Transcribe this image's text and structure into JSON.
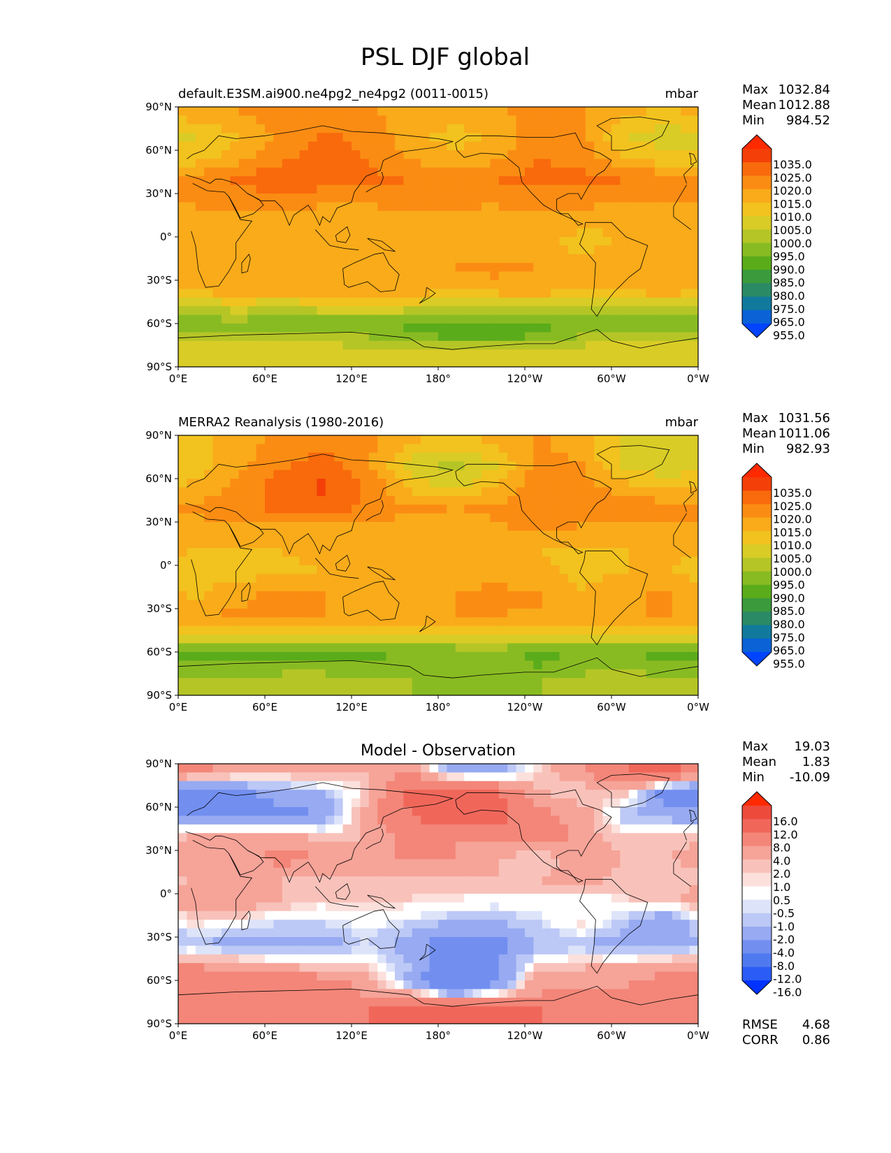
{
  "figure": {
    "title": "PSL DJF global"
  },
  "axis_ticks": {
    "lat": [
      "90°N",
      "60°N",
      "30°N",
      "0°",
      "30°S",
      "60°S",
      "90°S"
    ],
    "lon": [
      "0°E",
      "60°E",
      "120°E",
      "180°",
      "120°W",
      "60°W",
      "0°W"
    ]
  },
  "panels": [
    {
      "title": "default.E3SM.ai900.ne4pg2_ne4pg2 (0011-0015)",
      "units": "mbar",
      "stats": {
        "max_label": "Max",
        "max": "1032.84",
        "mean_label": "Mean",
        "mean": "1012.88",
        "min_label": "Min",
        "min": "984.52"
      },
      "colorbar_labels": [
        "1035.0",
        "1025.0",
        "1020.0",
        "1015.0",
        "1010.0",
        "1005.0",
        "1000.0",
        "995.0",
        "990.0",
        "985.0",
        "980.0",
        "975.0",
        "965.0",
        "955.0"
      ]
    },
    {
      "title": "MERRA2 Reanalysis (1980-2016)",
      "units": "mbar",
      "stats": {
        "max_label": "Max",
        "max": "1031.56",
        "mean_label": "Mean",
        "mean": "1011.06",
        "min_label": "Min",
        "min": "982.93"
      },
      "colorbar_labels": [
        "1035.0",
        "1025.0",
        "1020.0",
        "1015.0",
        "1010.0",
        "1005.0",
        "1000.0",
        "995.0",
        "990.0",
        "985.0",
        "980.0",
        "975.0",
        "965.0",
        "955.0"
      ]
    },
    {
      "title": "Model - Observation",
      "units": "",
      "stats": {
        "max_label": "Max",
        "max": "19.03",
        "mean_label": "Mean",
        "mean": "1.83",
        "min_label": "Min",
        "min": "-10.09"
      },
      "colorbar_labels": [
        "16.0",
        "12.0",
        "8.0",
        "4.0",
        "2.0",
        "1.0",
        "0.5",
        "-0.5",
        "-1.0",
        "-2.0",
        "-4.0",
        "-8.0",
        "-12.0",
        "-16.0"
      ],
      "metrics": {
        "rmse_label": "RMSE",
        "rmse": "4.68",
        "corr_label": "CORR",
        "corr": "0.86"
      }
    }
  ],
  "colors": {
    "abs": [
      "#0044ff",
      "#0a62d6",
      "#117a9c",
      "#2a8a66",
      "#3a9a3c",
      "#5aac1a",
      "#88bb22",
      "#b5c526",
      "#d9cc26",
      "#f2c21e",
      "#f9ab1a",
      "#fb8c13",
      "#f86a0c",
      "#f43f08",
      "#ff2a00"
    ],
    "diff": [
      "#0033ff",
      "#2b5cf5",
      "#4f7aef",
      "#728ff0",
      "#97aaf2",
      "#bcc8f6",
      "#dde4fa",
      "#ffffff",
      "#fbe0dc",
      "#f8c2ba",
      "#f6a398",
      "#f38678",
      "#f0675a",
      "#ed4a3c",
      "#ff2a00"
    ]
  },
  "chart_data": [
    {
      "type": "heatmap",
      "title": "default.E3SM.ai900.ne4pg2_ne4pg2 (0011-0015)",
      "units": "mbar",
      "x_range": [
        0,
        360
      ],
      "y_range": [
        -90,
        90
      ],
      "levels": [
        955,
        965,
        975,
        980,
        985,
        990,
        995,
        1000,
        1005,
        1010,
        1015,
        1020,
        1025,
        1035
      ],
      "extend": "both",
      "max": 1032.84,
      "mean": 1012.88,
      "min": 984.52,
      "lat": [
        85,
        70,
        55,
        40,
        25,
        10,
        -5,
        -20,
        -35,
        -50,
        -60,
        -70,
        -80
      ],
      "lon": [
        10,
        40,
        70,
        100,
        130,
        160,
        190,
        220,
        250,
        280,
        310,
        340
      ],
      "grid": [
        [
          1013,
          1015,
          1017,
          1018,
          1016,
          1013,
          1012,
          1014,
          1017,
          1015,
          1011,
          1009
        ],
        [
          1004,
          1010,
          1016,
          1021,
          1019,
          1012,
          1008,
          1011,
          1018,
          1016,
          1005,
          1002
        ],
        [
          1007,
          1012,
          1018,
          1022,
          1020,
          1014,
          1011,
          1014,
          1020,
          1018,
          1009,
          1006
        ],
        [
          1017,
          1021,
          1024,
          1023,
          1021,
          1020,
          1018,
          1020,
          1022,
          1022,
          1020,
          1018
        ],
        [
          1016,
          1017,
          1018,
          1016,
          1016,
          1017,
          1016,
          1016,
          1017,
          1017,
          1015,
          1016
        ],
        [
          1012,
          1011,
          1012,
          1012,
          1011,
          1012,
          1013,
          1012,
          1012,
          1011,
          1010,
          1012
        ],
        [
          1011,
          1012,
          1011,
          1010,
          1011,
          1011,
          1012,
          1012,
          1011,
          1008,
          1011,
          1011
        ],
        [
          1013,
          1013,
          1015,
          1015,
          1012,
          1014,
          1015,
          1016,
          1015,
          1012,
          1014,
          1015
        ],
        [
          1013,
          1014,
          1014,
          1014,
          1014,
          1014,
          1013,
          1014,
          1014,
          1013,
          1013,
          1014
        ],
        [
          1000,
          1001,
          1000,
          1001,
          1002,
          1001,
          1000,
          999,
          1000,
          1000,
          1001,
          1000
        ],
        [
          992,
          993,
          991,
          992,
          991,
          989,
          987,
          987,
          988,
          991,
          991,
          990
        ],
        [
          998,
          997,
          997,
          996,
          996,
          992,
          989,
          989,
          991,
          996,
          997,
          998
        ],
        [
          1004,
          1003,
          1004,
          1005,
          1003,
          1004,
          1005,
          1003,
          1003,
          1004,
          1004,
          1004
        ]
      ]
    },
    {
      "type": "heatmap",
      "title": "MERRA2 Reanalysis (1980-2016)",
      "units": "mbar",
      "x_range": [
        0,
        360
      ],
      "y_range": [
        -90,
        90
      ],
      "levels": [
        955,
        965,
        975,
        980,
        985,
        990,
        995,
        1000,
        1005,
        1010,
        1015,
        1020,
        1025,
        1035
      ],
      "extend": "both",
      "max": 1031.56,
      "mean": 1011.06,
      "min": 982.93,
      "lat": [
        85,
        70,
        55,
        40,
        25,
        10,
        -5,
        -20,
        -35,
        -50,
        -60,
        -70,
        -80
      ],
      "lon": [
        10,
        40,
        70,
        100,
        130,
        160,
        190,
        220,
        250,
        280,
        310,
        340
      ],
      "grid": [
        [
          1007,
          1013,
          1016,
          1018,
          1016,
          1011,
          1008,
          1011,
          1016,
          1012,
          1003,
          1000
        ],
        [
          1006,
          1013,
          1019,
          1022,
          1017,
          1003,
          998,
          1004,
          1017,
          1015,
          1002,
          1001
        ],
        [
          1011,
          1016,
          1022,
          1026,
          1020,
          1008,
          1003,
          1010,
          1019,
          1017,
          1011,
          1008
        ],
        [
          1016,
          1019,
          1021,
          1023,
          1019,
          1016,
          1015,
          1016,
          1018,
          1020,
          1019,
          1017
        ],
        [
          1013,
          1014,
          1013,
          1012,
          1013,
          1013,
          1012,
          1014,
          1016,
          1014,
          1013,
          1014
        ],
        [
          1010,
          1009,
          1010,
          1011,
          1010,
          1011,
          1010,
          1011,
          1010,
          1008,
          1010,
          1011
        ],
        [
          1007,
          1008,
          1009,
          1010,
          1010,
          1011,
          1012,
          1012,
          1011,
          1009,
          1010,
          1010
        ],
        [
          1009,
          1013,
          1017,
          1015,
          1014,
          1015,
          1015,
          1017,
          1016,
          1010,
          1014,
          1016
        ],
        [
          1014,
          1016,
          1015,
          1015,
          1015,
          1014,
          1015,
          1015,
          1014,
          1014,
          1015,
          1015
        ],
        [
          1002,
          1003,
          1003,
          1002,
          1003,
          1003,
          1002,
          1002,
          1003,
          1002,
          1003,
          1002
        ],
        [
          985,
          988,
          987,
          988,
          989,
          990,
          992,
          994,
          988,
          992,
          991,
          987
        ],
        [
          993,
          991,
          992,
          992,
          991,
          992,
          992,
          991,
          990,
          992,
          992,
          991
        ],
        [
          997,
          998,
          998,
          998,
          997,
          995,
          993,
          993,
          995,
          998,
          999,
          998
        ]
      ]
    },
    {
      "type": "heatmap",
      "title": "Model - Observation",
      "x_range": [
        0,
        360
      ],
      "y_range": [
        -90,
        90
      ],
      "levels": [
        -16,
        -12,
        -8,
        -4,
        -2,
        -1,
        -0.5,
        0.5,
        1,
        2,
        4,
        8,
        12,
        16
      ],
      "extend": "both",
      "max": 19.03,
      "mean": 1.83,
      "min": -10.09,
      "rmse": 4.68,
      "corr": 0.86,
      "lat": [
        85,
        70,
        55,
        40,
        25,
        10,
        -5,
        -20,
        -35,
        -50,
        -60,
        -70,
        -80
      ],
      "lon": [
        10,
        40,
        70,
        100,
        130,
        160,
        190,
        220,
        250,
        280,
        310,
        340
      ],
      "grid": [
        [
          5,
          3,
          2,
          3,
          2,
          4,
          -3,
          -3,
          1,
          4,
          8,
          9
        ],
        [
          -7,
          -5,
          -3,
          -2,
          1,
          9,
          11,
          8,
          2,
          1,
          2,
          -6
        ],
        [
          -4,
          -6,
          -5,
          -4,
          3,
          8,
          12,
          10,
          5,
          3,
          -2,
          -3
        ],
        [
          2,
          3,
          3,
          1,
          2,
          5,
          4,
          5,
          6,
          3,
          1,
          1
        ],
        [
          3,
          3,
          5,
          4,
          4,
          4,
          4,
          2,
          1,
          3,
          2,
          2
        ],
        [
          2,
          2,
          2,
          1,
          1,
          1,
          2,
          2,
          2,
          3,
          1,
          1
        ],
        [
          4,
          4,
          2,
          1,
          1,
          1,
          0.4,
          0,
          0,
          -1,
          1,
          1
        ],
        [
          1,
          0,
          -1,
          -1,
          0,
          -1,
          -2,
          -2,
          -1,
          1,
          -2,
          -4
        ],
        [
          -2,
          -3,
          -3,
          -3,
          -1,
          -3,
          -6,
          -5,
          -2,
          -2,
          -3,
          -3
        ],
        [
          4,
          3,
          2,
          1,
          1,
          -2,
          -6,
          -4,
          1,
          2,
          2,
          3
        ],
        [
          8,
          6,
          6,
          5,
          3,
          -3,
          -8,
          -6,
          4,
          2,
          3,
          5
        ],
        [
          6,
          5,
          5,
          5,
          4,
          3,
          -2,
          1,
          4,
          5,
          6,
          6
        ],
        [
          7,
          5,
          6,
          7,
          8,
          10,
          12,
          10,
          8,
          7,
          6,
          6
        ]
      ]
    }
  ]
}
